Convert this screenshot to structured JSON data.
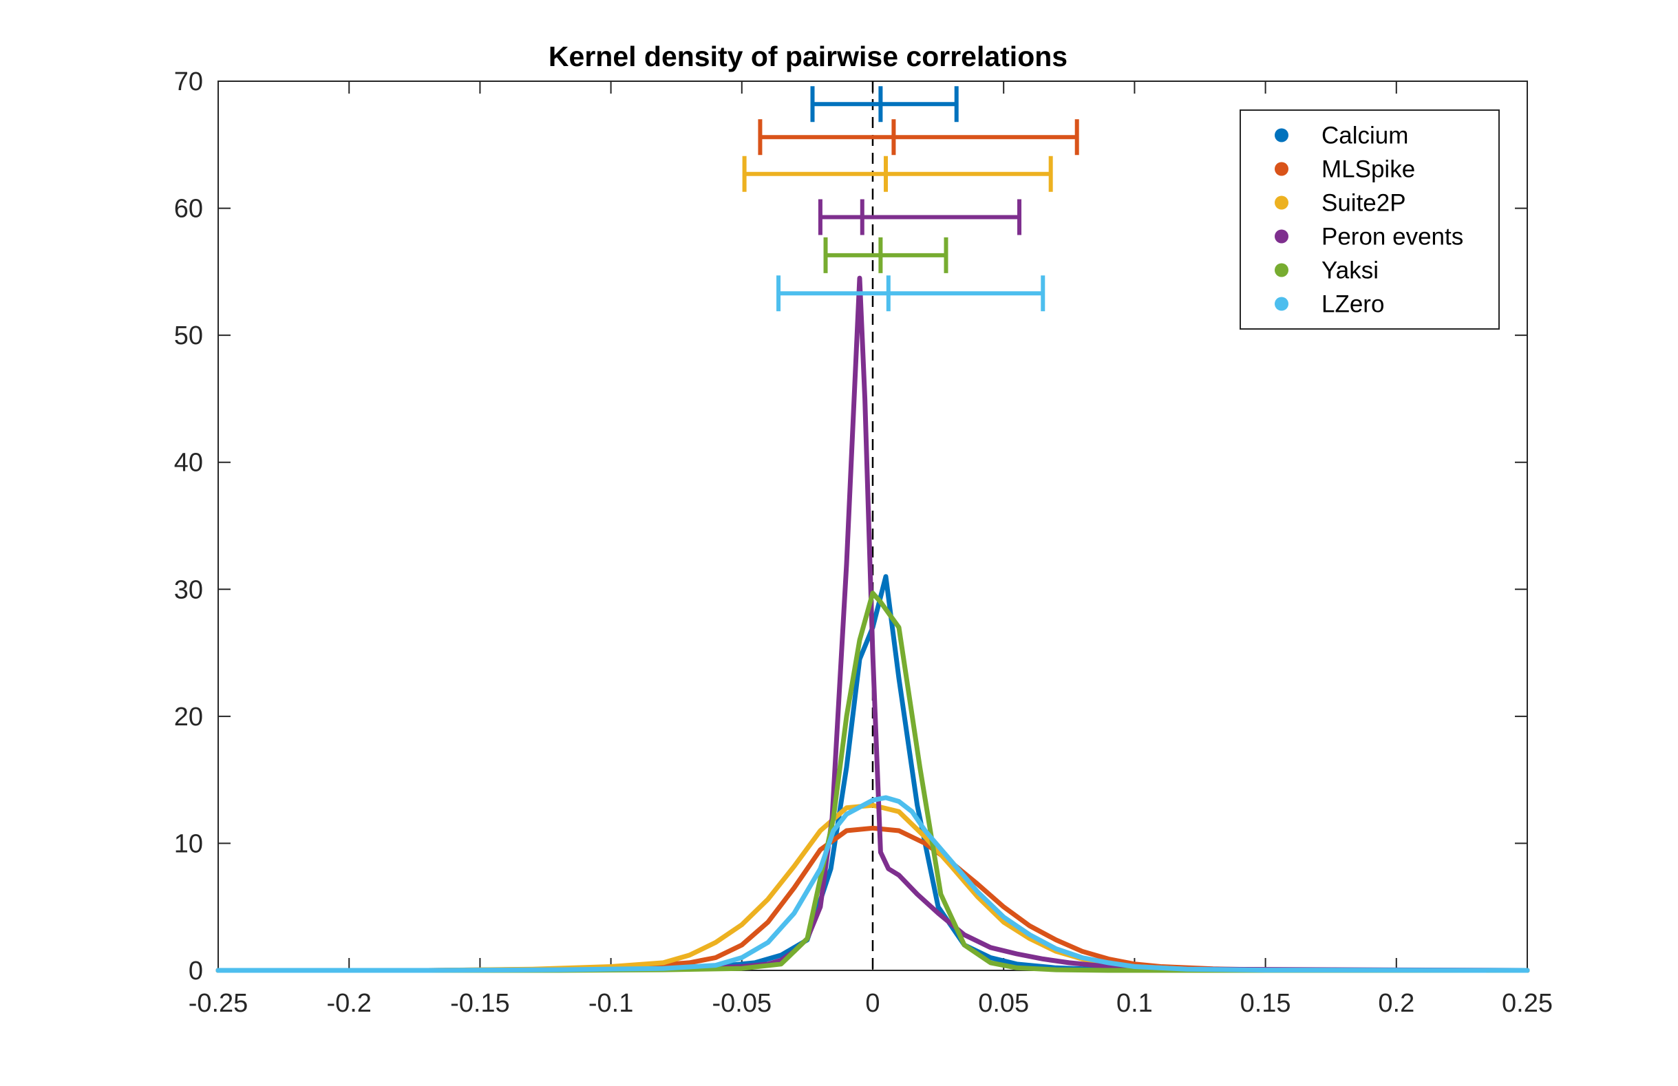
{
  "chart_data": {
    "type": "line",
    "title": "Kernel density of pairwise correlations",
    "xlabel": "",
    "ylabel": "",
    "xlim": [
      -0.25,
      0.25
    ],
    "ylim": [
      0,
      70
    ],
    "xticks": [
      -0.25,
      -0.2,
      -0.15,
      -0.1,
      -0.05,
      0,
      0.05,
      0.1,
      0.15,
      0.2,
      0.25
    ],
    "xtick_labels": [
      "-0.25",
      "-0.2",
      "-0.15",
      "-0.1",
      "-0.05",
      "0",
      "0.05",
      "0.1",
      "0.15",
      "0.2",
      "0.25"
    ],
    "yticks": [
      0,
      10,
      20,
      30,
      40,
      50,
      60,
      70
    ],
    "ytick_labels": [
      "0",
      "10",
      "20",
      "30",
      "40",
      "50",
      "60",
      "70"
    ],
    "grid": false,
    "legend_position": "top-right",
    "reference_line": {
      "x": 0,
      "style": "dashed",
      "color": "#000000"
    },
    "series": [
      {
        "name": "Calcium",
        "color": "#0072BD",
        "x": [
          -0.25,
          -0.15,
          -0.1,
          -0.08,
          -0.06,
          -0.045,
          -0.035,
          -0.025,
          -0.016,
          -0.01,
          -0.005,
          0,
          0.005,
          0.01,
          0.017,
          0.025,
          0.035,
          0.045,
          0.055,
          0.07,
          0.09,
          0.12,
          0.25
        ],
        "y": [
          0,
          0,
          0.05,
          0.1,
          0.3,
          0.6,
          1.2,
          2.4,
          8,
          16,
          24.5,
          27,
          31,
          23,
          13,
          5,
          2,
          1,
          0.5,
          0.2,
          0.05,
          0,
          0
        ],
        "errorbar": {
          "y": 68.2,
          "center": 0.003,
          "low": -0.023,
          "high": 0.032
        }
      },
      {
        "name": "MLSpike",
        "color": "#D95319",
        "x": [
          -0.25,
          -0.17,
          -0.12,
          -0.09,
          -0.07,
          -0.06,
          -0.05,
          -0.04,
          -0.03,
          -0.02,
          -0.01,
          0,
          0.01,
          0.02,
          0.03,
          0.04,
          0.05,
          0.06,
          0.07,
          0.08,
          0.09,
          0.1,
          0.11,
          0.13,
          0.15,
          0.2,
          0.25
        ],
        "y": [
          0,
          0,
          0.1,
          0.3,
          0.6,
          1,
          2,
          3.8,
          6.5,
          9.5,
          11,
          11.2,
          11,
          10,
          8.5,
          6.8,
          5,
          3.5,
          2.4,
          1.5,
          0.9,
          0.5,
          0.3,
          0.12,
          0.05,
          0,
          0
        ],
        "errorbar": {
          "y": 65.6,
          "center": 0.008,
          "low": -0.043,
          "high": 0.078
        }
      },
      {
        "name": "Suite2P",
        "color": "#EDB120",
        "x": [
          -0.25,
          -0.17,
          -0.13,
          -0.1,
          -0.08,
          -0.07,
          -0.06,
          -0.05,
          -0.04,
          -0.03,
          -0.02,
          -0.01,
          0,
          0.01,
          0.02,
          0.03,
          0.04,
          0.05,
          0.06,
          0.07,
          0.08,
          0.09,
          0.1,
          0.12,
          0.15,
          0.25
        ],
        "y": [
          0,
          0,
          0.1,
          0.3,
          0.6,
          1.2,
          2.2,
          3.6,
          5.6,
          8.2,
          11,
          12.8,
          13,
          12.5,
          10.5,
          8.2,
          5.8,
          3.8,
          2.5,
          1.5,
          0.9,
          0.5,
          0.3,
          0.1,
          0,
          0
        ],
        "errorbar": {
          "y": 62.7,
          "center": 0.005,
          "low": -0.049,
          "high": 0.068
        }
      },
      {
        "name": "Peron events",
        "color": "#7E2F8E",
        "x": [
          -0.25,
          -0.15,
          -0.1,
          -0.07,
          -0.05,
          -0.04,
          -0.035,
          -0.03,
          -0.025,
          -0.02,
          -0.0155,
          -0.01,
          -0.006,
          -0.005,
          -0.003,
          0,
          0.003,
          0.006,
          0.01,
          0.017,
          0.025,
          0.035,
          0.045,
          0.055,
          0.065,
          0.075,
          0.09,
          0.12,
          0.25
        ],
        "y": [
          0,
          0,
          0.05,
          0.15,
          0.3,
          0.5,
          0.8,
          1.5,
          2.5,
          5,
          12,
          32,
          50,
          54.5,
          45,
          25,
          9.3,
          8,
          7.5,
          6,
          4.5,
          2.8,
          1.8,
          1.3,
          0.9,
          0.6,
          0.3,
          0.1,
          0
        ],
        "errorbar": {
          "y": 59.3,
          "center": -0.004,
          "low": -0.02,
          "high": 0.056
        }
      },
      {
        "name": "Yaksi",
        "color": "#77AC30",
        "x": [
          -0.25,
          -0.17,
          -0.12,
          -0.08,
          -0.05,
          -0.035,
          -0.025,
          -0.015,
          -0.01,
          -0.005,
          0,
          0.003,
          0.01,
          0.018,
          0.026,
          0.035,
          0.045,
          0.055,
          0.07,
          0.09,
          0.25
        ],
        "y": [
          0,
          0,
          0,
          0.05,
          0.15,
          0.5,
          2.5,
          12,
          20,
          26,
          29.7,
          29,
          27,
          16,
          6,
          2,
          0.6,
          0.2,
          0.05,
          0,
          0
        ],
        "errorbar": {
          "y": 56.3,
          "center": 0.003,
          "low": -0.018,
          "high": 0.028
        }
      },
      {
        "name": "LZero",
        "color": "#4DBEEE",
        "x": [
          -0.25,
          -0.17,
          -0.12,
          -0.08,
          -0.06,
          -0.05,
          -0.04,
          -0.03,
          -0.02,
          -0.015,
          -0.01,
          0,
          0.005,
          0.01,
          0.015,
          0.02,
          0.03,
          0.04,
          0.05,
          0.06,
          0.07,
          0.08,
          0.09,
          0.1,
          0.12,
          0.15,
          0.25
        ],
        "y": [
          0,
          0,
          0.05,
          0.15,
          0.4,
          1,
          2.2,
          4.5,
          8,
          11,
          12.3,
          13.4,
          13.6,
          13.3,
          12.5,
          11,
          8.6,
          6.2,
          4.2,
          2.8,
          1.7,
          1,
          0.6,
          0.3,
          0.1,
          0.02,
          0
        ],
        "errorbar": {
          "y": 53.3,
          "center": 0.006,
          "low": -0.036,
          "high": 0.065
        }
      }
    ]
  }
}
